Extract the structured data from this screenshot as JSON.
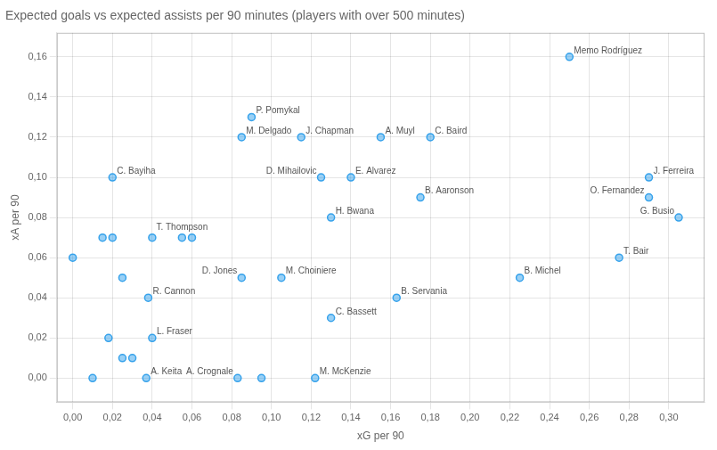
{
  "chart_data": {
    "type": "scatter",
    "title": "Expected goals vs expected assists per 90 minutes (players with over 500 minutes)",
    "xlabel": "xG per 90",
    "ylabel": "xA per 90",
    "x": [
      0.25,
      0.09,
      0.155,
      0.115,
      0.085,
      0.18,
      0.29,
      0.14,
      0.125,
      0.02,
      0.29,
      0.175,
      0.13,
      0.305,
      0.055,
      0.085,
      0.105,
      0.275,
      0.225,
      0.038,
      0.163,
      0.13,
      0.04,
      0.037,
      0.083,
      0.122,
      0.0,
      0.01,
      0.015,
      0.02,
      0.025,
      0.018,
      0.025,
      0.03,
      0.04,
      0.06,
      0.095
    ],
    "values": [
      0.16,
      0.13,
      0.12,
      0.12,
      0.12,
      0.12,
      0.1,
      0.1,
      0.1,
      0.1,
      0.09,
      0.09,
      0.08,
      0.08,
      0.07,
      0.05,
      0.05,
      0.06,
      0.05,
      0.04,
      0.04,
      0.03,
      0.02,
      0.0,
      0.0,
      0.0,
      0.06,
      0.0,
      0.07,
      0.07,
      0.05,
      0.02,
      0.01,
      0.01,
      0.07,
      0.07,
      0.0
    ],
    "point_labels": [
      "Memo Rodríguez",
      "P. Pomykal",
      "A. Muyl",
      "J. Chapman",
      "M. Delgado",
      "C. Baird",
      "J. Ferreira",
      "E. Alvarez",
      "D. Mihailovic",
      "C. Bayiha",
      "O. Fernandez",
      "B. Aaronson",
      "H. Bwana",
      "G. Busio",
      "T. Thompson",
      "D. Jones",
      "M. Choiniere",
      "T. Bair",
      "B. Michel",
      "R. Cannon",
      "B. Servania",
      "C. Bassett",
      "L. Fraser",
      "A. Keita",
      "A. Crognale",
      "M. McKenzie",
      null,
      null,
      null,
      null,
      null,
      null,
      null,
      null,
      null,
      null,
      null
    ],
    "xlim": [
      -0.008,
      0.318
    ],
    "xticks": [
      {
        "value": 0.0,
        "label": "0,00"
      },
      {
        "value": 0.02,
        "label": "0,02"
      },
      {
        "value": 0.04,
        "label": "0,04"
      },
      {
        "value": 0.06,
        "label": "0,06"
      },
      {
        "value": 0.08,
        "label": "0,08"
      },
      {
        "value": 0.1,
        "label": "0,10"
      },
      {
        "value": 0.12,
        "label": "0,12"
      },
      {
        "value": 0.14,
        "label": "0,14"
      },
      {
        "value": 0.16,
        "label": "0,16"
      },
      {
        "value": 0.18,
        "label": "0,18"
      },
      {
        "value": 0.2,
        "label": "0,20"
      },
      {
        "value": 0.22,
        "label": "0,22"
      },
      {
        "value": 0.24,
        "label": "0,24"
      },
      {
        "value": 0.26,
        "label": "0,26"
      },
      {
        "value": 0.28,
        "label": "0,28"
      },
      {
        "value": 0.3,
        "label": "0,30"
      }
    ],
    "ylim": [
      -0.012,
      0.172
    ],
    "yticks": [
      {
        "value": 0.0,
        "label": "0,00"
      },
      {
        "value": 0.02,
        "label": "0,02"
      },
      {
        "value": 0.04,
        "label": "0,04"
      },
      {
        "value": 0.06,
        "label": "0,06"
      },
      {
        "value": 0.08,
        "label": "0,08"
      },
      {
        "value": 0.1,
        "label": "0,10"
      },
      {
        "value": 0.12,
        "label": "0,12"
      },
      {
        "value": 0.14,
        "label": "0,14"
      },
      {
        "value": 0.16,
        "label": "0,16"
      }
    ],
    "grid": true
  }
}
